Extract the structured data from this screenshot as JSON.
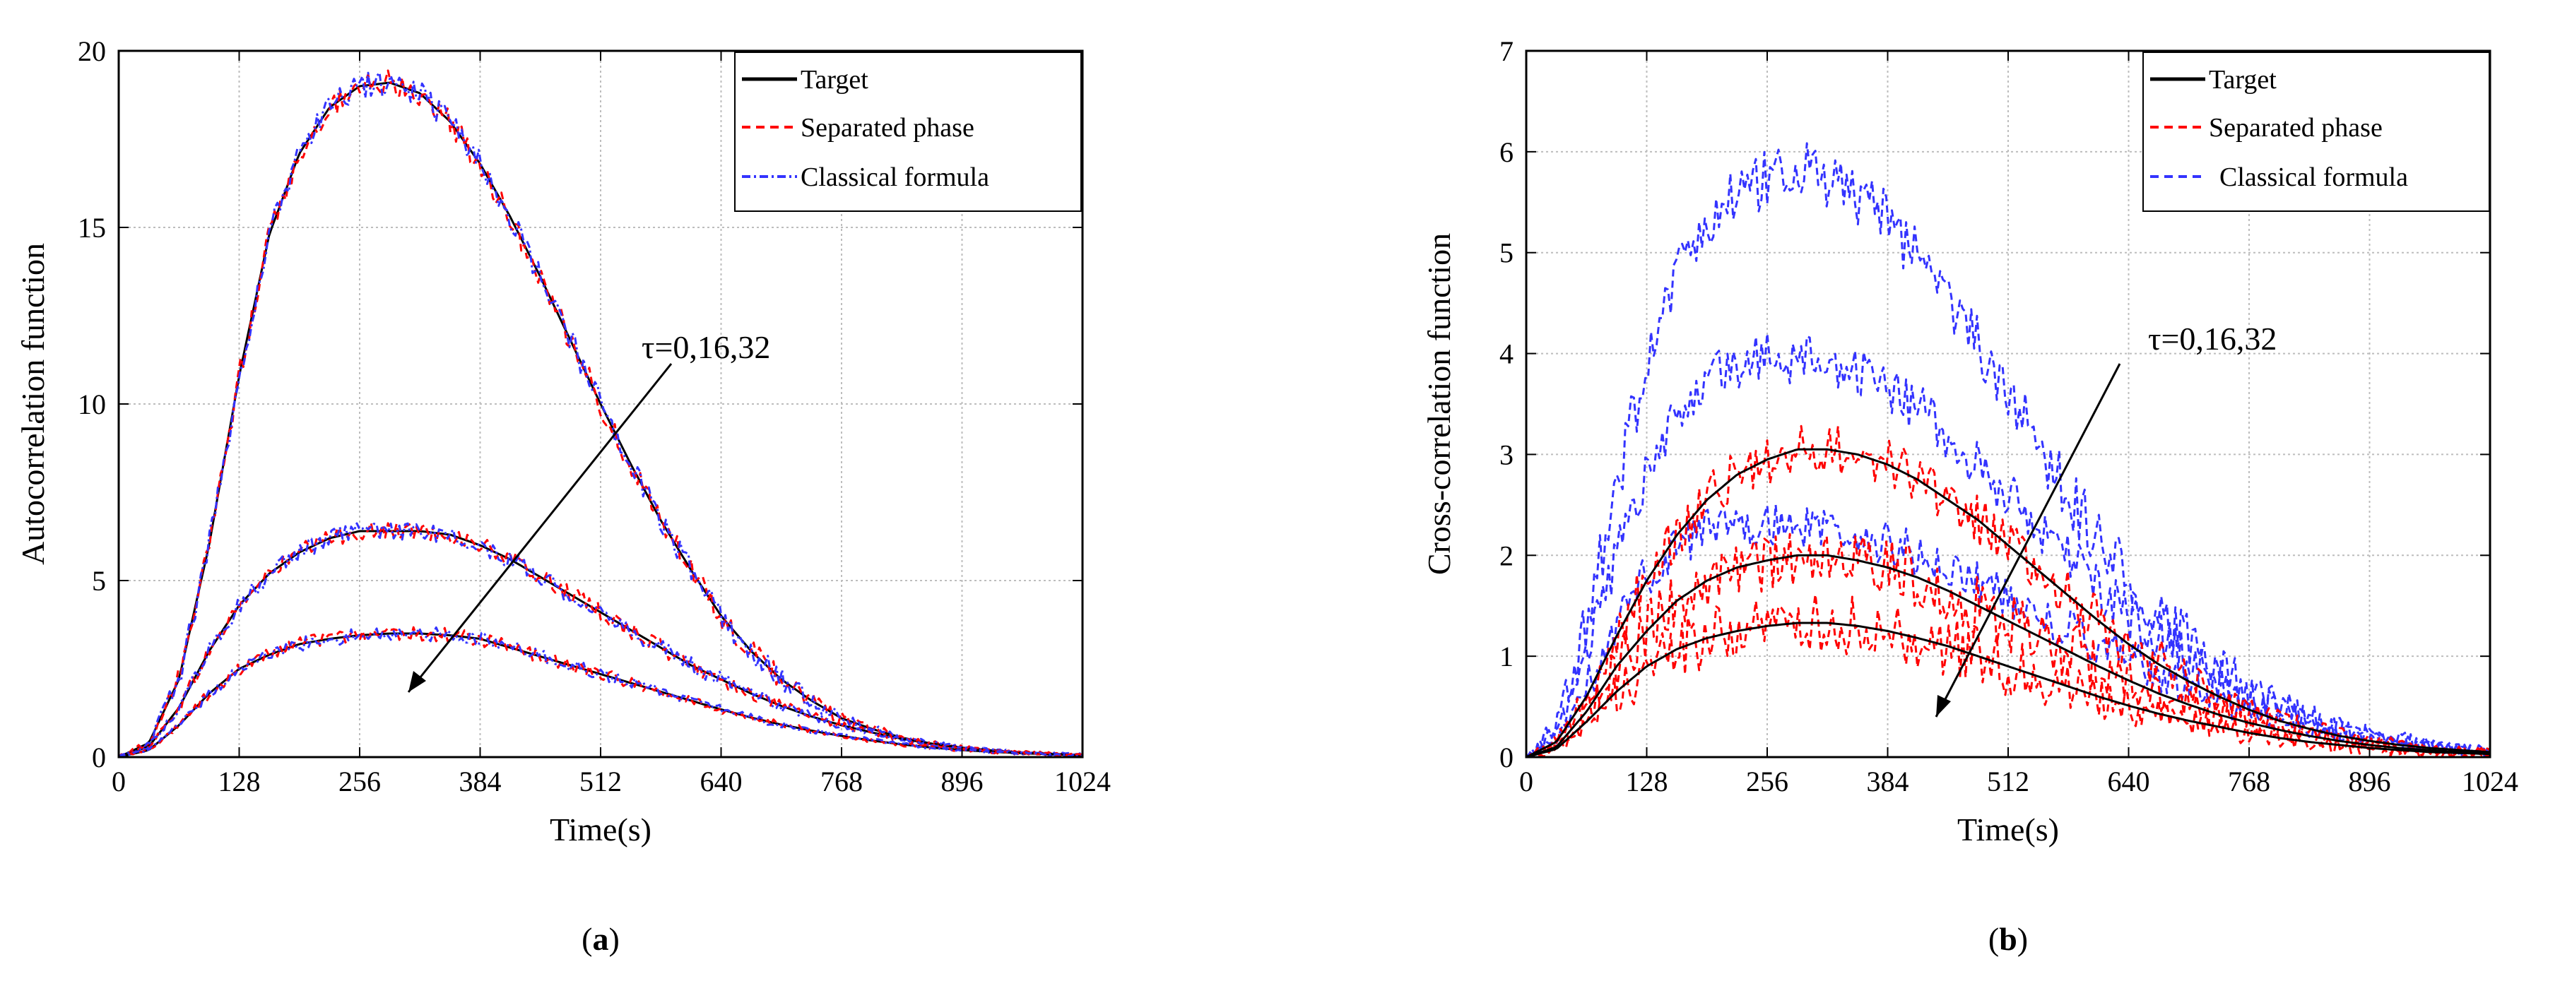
{
  "chart_data": [
    {
      "type": "line",
      "caption_letter": "a",
      "xlabel": "Time(s)",
      "ylabel": "Autocorrelation function",
      "xlim": [
        0,
        1024
      ],
      "ylim": [
        0,
        20
      ],
      "x_ticks": [
        "0",
        "128",
        "256",
        "384",
        "512",
        "640",
        "768",
        "896",
        "1024"
      ],
      "y_ticks": [
        "0",
        "5",
        "10",
        "15",
        "20"
      ],
      "grid": true,
      "legend_position": "top-right",
      "legend": [
        {
          "name": "Target",
          "color": "#000000",
          "style": "solid"
        },
        {
          "name": "Separated phase",
          "color": "#ff0000",
          "style": "dashed"
        },
        {
          "name": "Classical formula",
          "color": "#3333ff",
          "style": "dashdot"
        }
      ],
      "annotation": "τ=0,16,32",
      "curve_x": [
        0,
        32,
        64,
        96,
        128,
        160,
        192,
        224,
        256,
        288,
        320,
        352,
        384,
        416,
        448,
        480,
        512,
        544,
        576,
        608,
        640,
        672,
        704,
        736,
        768,
        800,
        832,
        864,
        896,
        928,
        960,
        992,
        1024
      ],
      "series": [
        {
          "lag": 0,
          "noise": 0.35,
          "values": [
            0,
            0.4,
            2.2,
            6.0,
            10.8,
            14.8,
            17.1,
            18.4,
            19.0,
            19.1,
            18.8,
            18.0,
            16.8,
            15.3,
            13.6,
            11.8,
            10.0,
            8.3,
            6.7,
            5.3,
            4.0,
            3.0,
            2.2,
            1.6,
            1.1,
            0.8,
            0.55,
            0.38,
            0.26,
            0.18,
            0.12,
            0.08,
            0.05
          ]
        },
        {
          "lag": 16,
          "noise": 0.25,
          "values": [
            0,
            0.3,
            1.4,
            3.0,
            4.3,
            5.2,
            5.8,
            6.2,
            6.4,
            6.4,
            6.4,
            6.3,
            6.0,
            5.6,
            5.1,
            4.6,
            4.1,
            3.6,
            3.1,
            2.6,
            2.2,
            1.8,
            1.45,
            1.15,
            0.9,
            0.7,
            0.52,
            0.38,
            0.27,
            0.19,
            0.13,
            0.09,
            0.06
          ]
        },
        {
          "lag": 32,
          "noise": 0.2,
          "values": [
            0,
            0.2,
            0.9,
            1.8,
            2.5,
            2.9,
            3.2,
            3.35,
            3.45,
            3.5,
            3.5,
            3.45,
            3.35,
            3.1,
            2.85,
            2.6,
            2.35,
            2.1,
            1.85,
            1.6,
            1.35,
            1.12,
            0.92,
            0.75,
            0.6,
            0.47,
            0.36,
            0.27,
            0.2,
            0.15,
            0.11,
            0.08,
            0.05
          ]
        }
      ]
    },
    {
      "type": "line",
      "caption_letter": "b",
      "xlabel": "Time(s)",
      "ylabel": "Cross-correlation function",
      "xlim": [
        0,
        1024
      ],
      "ylim": [
        0,
        7
      ],
      "x_ticks": [
        "0",
        "128",
        "256",
        "384",
        "512",
        "640",
        "768",
        "896",
        "1024"
      ],
      "y_ticks": [
        "0",
        "1",
        "2",
        "3",
        "4",
        "5",
        "6",
        "7"
      ],
      "grid": true,
      "legend_position": "top-right",
      "legend": [
        {
          "name": "Target",
          "color": "#000000",
          "style": "solid"
        },
        {
          "name": "Separated phase",
          "color": "#ff0000",
          "style": "dashed"
        },
        {
          "name": "Classical formula",
          "color": "#3333ff",
          "style": "dashed"
        }
      ],
      "annotation": "τ=0,16,32",
      "curve_x": [
        0,
        32,
        64,
        96,
        128,
        160,
        192,
        224,
        256,
        288,
        320,
        352,
        384,
        416,
        448,
        480,
        512,
        544,
        576,
        608,
        640,
        672,
        704,
        736,
        768,
        800,
        832,
        864,
        896,
        928,
        960,
        992,
        1024
      ],
      "series": [
        {
          "name": "Target",
          "lag": 0,
          "values": [
            0,
            0.15,
            0.6,
            1.2,
            1.75,
            2.2,
            2.55,
            2.8,
            2.95,
            3.05,
            3.05,
            3.0,
            2.9,
            2.75,
            2.55,
            2.35,
            2.1,
            1.85,
            1.6,
            1.35,
            1.12,
            0.92,
            0.75,
            0.6,
            0.47,
            0.36,
            0.28,
            0.21,
            0.16,
            0.12,
            0.09,
            0.07,
            0.05
          ]
        },
        {
          "name": "Target",
          "lag": 16,
          "values": [
            0,
            0.1,
            0.45,
            0.9,
            1.25,
            1.55,
            1.75,
            1.88,
            1.95,
            2.0,
            2.0,
            1.95,
            1.88,
            1.78,
            1.65,
            1.5,
            1.35,
            1.2,
            1.05,
            0.9,
            0.76,
            0.63,
            0.52,
            0.42,
            0.34,
            0.27,
            0.21,
            0.16,
            0.12,
            0.09,
            0.07,
            0.05,
            0.04
          ]
        },
        {
          "name": "Target",
          "lag": 32,
          "values": [
            0,
            0.08,
            0.35,
            0.65,
            0.9,
            1.07,
            1.18,
            1.25,
            1.3,
            1.33,
            1.33,
            1.3,
            1.25,
            1.18,
            1.1,
            1.0,
            0.9,
            0.8,
            0.7,
            0.6,
            0.51,
            0.43,
            0.36,
            0.3,
            0.24,
            0.19,
            0.15,
            0.12,
            0.09,
            0.07,
            0.05,
            0.04,
            0.03
          ]
        },
        {
          "name": "Separated phase",
          "lag": 0,
          "noise": 0.25,
          "values": [
            0,
            0.15,
            0.6,
            1.2,
            1.75,
            2.2,
            2.55,
            2.8,
            2.95,
            3.05,
            3.05,
            3.0,
            2.9,
            2.75,
            2.55,
            2.35,
            2.1,
            1.85,
            1.6,
            1.35,
            1.12,
            0.92,
            0.75,
            0.6,
            0.47,
            0.36,
            0.28,
            0.21,
            0.16,
            0.12,
            0.09,
            0.07,
            0.05
          ]
        },
        {
          "name": "Separated phase",
          "lag": 16,
          "noise": 0.3,
          "values": [
            0,
            0.1,
            0.45,
            0.9,
            1.25,
            1.55,
            1.75,
            1.88,
            1.95,
            2.0,
            2.0,
            1.95,
            1.88,
            1.78,
            1.65,
            1.5,
            1.35,
            1.2,
            1.05,
            0.9,
            0.76,
            0.63,
            0.52,
            0.42,
            0.34,
            0.27,
            0.21,
            0.16,
            0.12,
            0.09,
            0.07,
            0.05,
            0.04
          ]
        },
        {
          "name": "Separated phase",
          "lag": 32,
          "noise": 0.3,
          "values": [
            0,
            0.08,
            0.35,
            0.65,
            0.9,
            1.07,
            1.18,
            1.25,
            1.3,
            1.33,
            1.33,
            1.3,
            1.25,
            1.18,
            1.1,
            1.0,
            0.9,
            0.8,
            0.7,
            0.6,
            0.51,
            0.43,
            0.36,
            0.3,
            0.24,
            0.19,
            0.15,
            0.12,
            0.09,
            0.07,
            0.05,
            0.04,
            0.03
          ]
        },
        {
          "name": "Classical formula",
          "lag": 0,
          "noise": 0.3,
          "values": [
            0,
            0.3,
            1.3,
            2.7,
            3.9,
            4.8,
            5.3,
            5.6,
            5.75,
            5.8,
            5.75,
            5.55,
            5.3,
            4.95,
            4.55,
            4.1,
            3.6,
            3.1,
            2.6,
            2.15,
            1.75,
            1.4,
            1.1,
            0.85,
            0.65,
            0.5,
            0.38,
            0.28,
            0.21,
            0.16,
            0.12,
            0.09,
            0.06
          ]
        },
        {
          "name": "Classical formula",
          "lag": 16,
          "noise": 0.25,
          "values": [
            0,
            0.25,
            1.0,
            2.0,
            2.8,
            3.35,
            3.7,
            3.9,
            3.95,
            3.95,
            3.9,
            3.8,
            3.65,
            3.45,
            3.2,
            2.9,
            2.6,
            2.3,
            2.0,
            1.7,
            1.42,
            1.17,
            0.95,
            0.76,
            0.6,
            0.47,
            0.36,
            0.27,
            0.2,
            0.15,
            0.11,
            0.08,
            0.06
          ]
        },
        {
          "name": "Classical formula",
          "lag": 32,
          "noise": 0.22,
          "values": [
            0,
            0.18,
            0.7,
            1.35,
            1.8,
            2.1,
            2.25,
            2.3,
            2.3,
            2.28,
            2.25,
            2.2,
            2.12,
            2.0,
            1.88,
            1.74,
            1.58,
            1.42,
            1.26,
            1.1,
            0.95,
            0.8,
            0.67,
            0.55,
            0.45,
            0.36,
            0.28,
            0.22,
            0.17,
            0.13,
            0.1,
            0.07,
            0.05
          ]
        }
      ]
    }
  ]
}
